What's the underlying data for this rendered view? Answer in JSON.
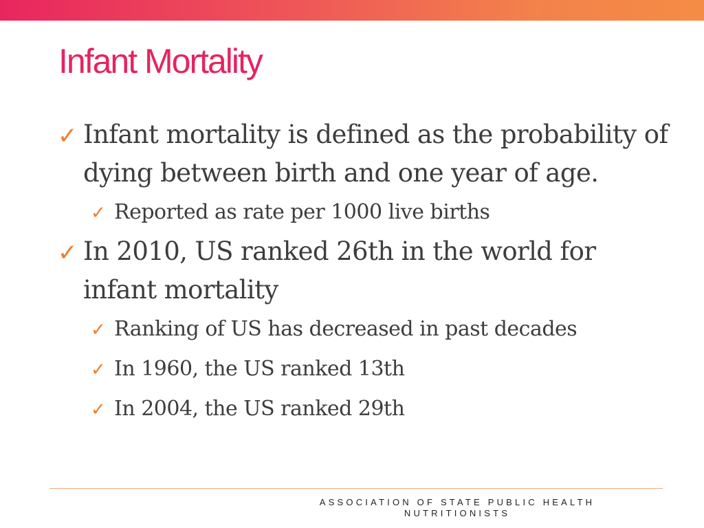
{
  "slide": {
    "title": "Infant Mortality",
    "bullets": [
      {
        "level": 1,
        "text": "Infant mortality is defined as the probability of dying between birth and one year of age."
      },
      {
        "level": 2,
        "text": "Reported as rate per 1000 live births"
      },
      {
        "level": 1,
        "text": "In 2010, US ranked 26th in the world for infant mortality"
      },
      {
        "level": 2,
        "text": "Ranking of US has decreased in past decades"
      },
      {
        "level": 2,
        "text": "In 1960, the US ranked 13th"
      },
      {
        "level": 2,
        "text": "In 2004, the US ranked 29th"
      }
    ],
    "bullet_icon": "checkmark-icon",
    "footer_line1": "ASSOCIATION OF STATE PUBLIC HEALTH",
    "footer_line2": "NUTRITIONISTS"
  },
  "colors": {
    "title": "#e5245f",
    "checkmark": "#f27b2d",
    "body_text": "#3d3d3d",
    "top_bar_start": "#e8265e",
    "top_bar_end": "#f48c45",
    "footer_rule": "#f5a77c"
  }
}
